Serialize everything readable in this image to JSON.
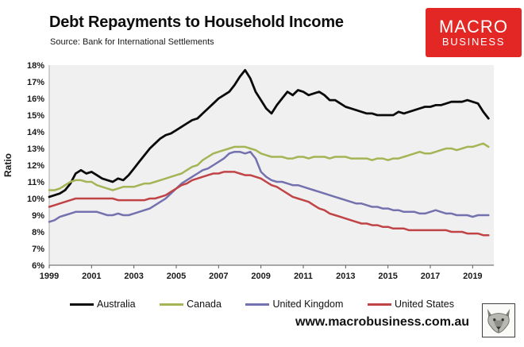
{
  "header": {
    "title": "Debt Repayments to Household Income",
    "subtitle": "Source: Bank for International Settlements",
    "logo": {
      "line1": "MACRO",
      "line2": "BUSINESS",
      "bg_color": "#e32725",
      "text_color": "#ffffff"
    }
  },
  "chart_data": {
    "type": "line",
    "title": "Debt Repayments to Household Income",
    "xlabel": "",
    "ylabel": "Ratio",
    "ylim": [
      6,
      18
    ],
    "y_tick_step": 1,
    "y_tick_suffix": "%",
    "xlim": [
      1999,
      2020
    ],
    "x_ticks": [
      1999,
      2001,
      2003,
      2005,
      2007,
      2009,
      2011,
      2013,
      2015,
      2017,
      2019
    ],
    "x_start": 1999.0,
    "x_step": 0.25,
    "grid": false,
    "plot_bg": "#f1f0f1",
    "legend_position": "bottom",
    "series": [
      {
        "name": "Australia",
        "color": "#0a0a0a",
        "width": 2.8,
        "values": [
          10.1,
          10.2,
          10.3,
          10.5,
          10.9,
          11.5,
          11.7,
          11.5,
          11.6,
          11.4,
          11.2,
          11.1,
          11.0,
          11.2,
          11.1,
          11.4,
          11.8,
          12.2,
          12.6,
          13.0,
          13.3,
          13.6,
          13.8,
          13.9,
          14.1,
          14.3,
          14.5,
          14.7,
          14.8,
          15.1,
          15.4,
          15.7,
          16.0,
          16.2,
          16.4,
          16.8,
          17.3,
          17.7,
          17.2,
          16.4,
          15.9,
          15.4,
          15.1,
          15.6,
          16.0,
          16.4,
          16.2,
          16.5,
          16.4,
          16.2,
          16.3,
          16.4,
          16.2,
          15.9,
          15.9,
          15.7,
          15.5,
          15.4,
          15.3,
          15.2,
          15.1,
          15.1,
          15.0,
          15.0,
          15.0,
          15.0,
          15.2,
          15.1,
          15.2,
          15.3,
          15.4,
          15.5,
          15.5,
          15.6,
          15.6,
          15.7,
          15.8,
          15.8,
          15.8,
          15.9,
          15.8,
          15.7,
          15.2,
          14.8
        ]
      },
      {
        "name": "Canada",
        "color": "#a3b554",
        "width": 2.5,
        "values": [
          10.5,
          10.5,
          10.6,
          10.8,
          11.0,
          11.1,
          11.1,
          11.0,
          11.0,
          10.8,
          10.7,
          10.6,
          10.5,
          10.6,
          10.7,
          10.7,
          10.7,
          10.8,
          10.9,
          10.9,
          11.0,
          11.1,
          11.2,
          11.3,
          11.4,
          11.5,
          11.7,
          11.9,
          12.0,
          12.3,
          12.5,
          12.7,
          12.8,
          12.9,
          13.0,
          13.1,
          13.1,
          13.1,
          13.0,
          12.9,
          12.7,
          12.6,
          12.5,
          12.5,
          12.5,
          12.4,
          12.4,
          12.5,
          12.5,
          12.4,
          12.5,
          12.5,
          12.5,
          12.4,
          12.5,
          12.5,
          12.5,
          12.4,
          12.4,
          12.4,
          12.4,
          12.3,
          12.4,
          12.4,
          12.3,
          12.4,
          12.4,
          12.5,
          12.6,
          12.7,
          12.8,
          12.7,
          12.7,
          12.8,
          12.9,
          13.0,
          13.0,
          12.9,
          13.0,
          13.1,
          13.1,
          13.2,
          13.3,
          13.1
        ]
      },
      {
        "name": "United Kingdom",
        "color": "#7472ae",
        "width": 2.5,
        "values": [
          8.6,
          8.7,
          8.9,
          9.0,
          9.1,
          9.2,
          9.2,
          9.2,
          9.2,
          9.2,
          9.1,
          9.0,
          9.0,
          9.1,
          9.0,
          9.0,
          9.1,
          9.2,
          9.3,
          9.4,
          9.6,
          9.8,
          10.0,
          10.3,
          10.6,
          10.9,
          11.1,
          11.3,
          11.5,
          11.7,
          11.8,
          12.0,
          12.2,
          12.4,
          12.7,
          12.8,
          12.8,
          12.7,
          12.8,
          12.4,
          11.6,
          11.3,
          11.1,
          11.0,
          11.0,
          10.9,
          10.8,
          10.8,
          10.7,
          10.6,
          10.5,
          10.4,
          10.3,
          10.2,
          10.1,
          10.0,
          9.9,
          9.8,
          9.7,
          9.7,
          9.6,
          9.5,
          9.5,
          9.4,
          9.4,
          9.3,
          9.3,
          9.2,
          9.2,
          9.2,
          9.1,
          9.1,
          9.2,
          9.3,
          9.2,
          9.1,
          9.1,
          9.0,
          9.0,
          9.0,
          8.9,
          9.0,
          9.0,
          9.0
        ]
      },
      {
        "name": "United States",
        "color": "#c04446",
        "width": 2.5,
        "values": [
          9.5,
          9.6,
          9.7,
          9.8,
          9.9,
          10.0,
          10.0,
          10.0,
          10.0,
          10.0,
          10.0,
          10.0,
          10.0,
          9.9,
          9.9,
          9.9,
          9.9,
          9.9,
          9.9,
          10.0,
          10.0,
          10.1,
          10.2,
          10.4,
          10.6,
          10.8,
          10.9,
          11.1,
          11.2,
          11.3,
          11.4,
          11.5,
          11.5,
          11.6,
          11.6,
          11.6,
          11.5,
          11.4,
          11.4,
          11.3,
          11.2,
          11.0,
          10.8,
          10.7,
          10.5,
          10.3,
          10.1,
          10.0,
          9.9,
          9.8,
          9.6,
          9.4,
          9.3,
          9.1,
          9.0,
          8.9,
          8.8,
          8.7,
          8.6,
          8.5,
          8.5,
          8.4,
          8.4,
          8.3,
          8.3,
          8.2,
          8.2,
          8.2,
          8.1,
          8.1,
          8.1,
          8.1,
          8.1,
          8.1,
          8.1,
          8.1,
          8.0,
          8.0,
          8.0,
          7.9,
          7.9,
          7.9,
          7.8,
          7.8
        ]
      }
    ]
  },
  "footer": {
    "website": "www.macrobusiness.com.au"
  }
}
